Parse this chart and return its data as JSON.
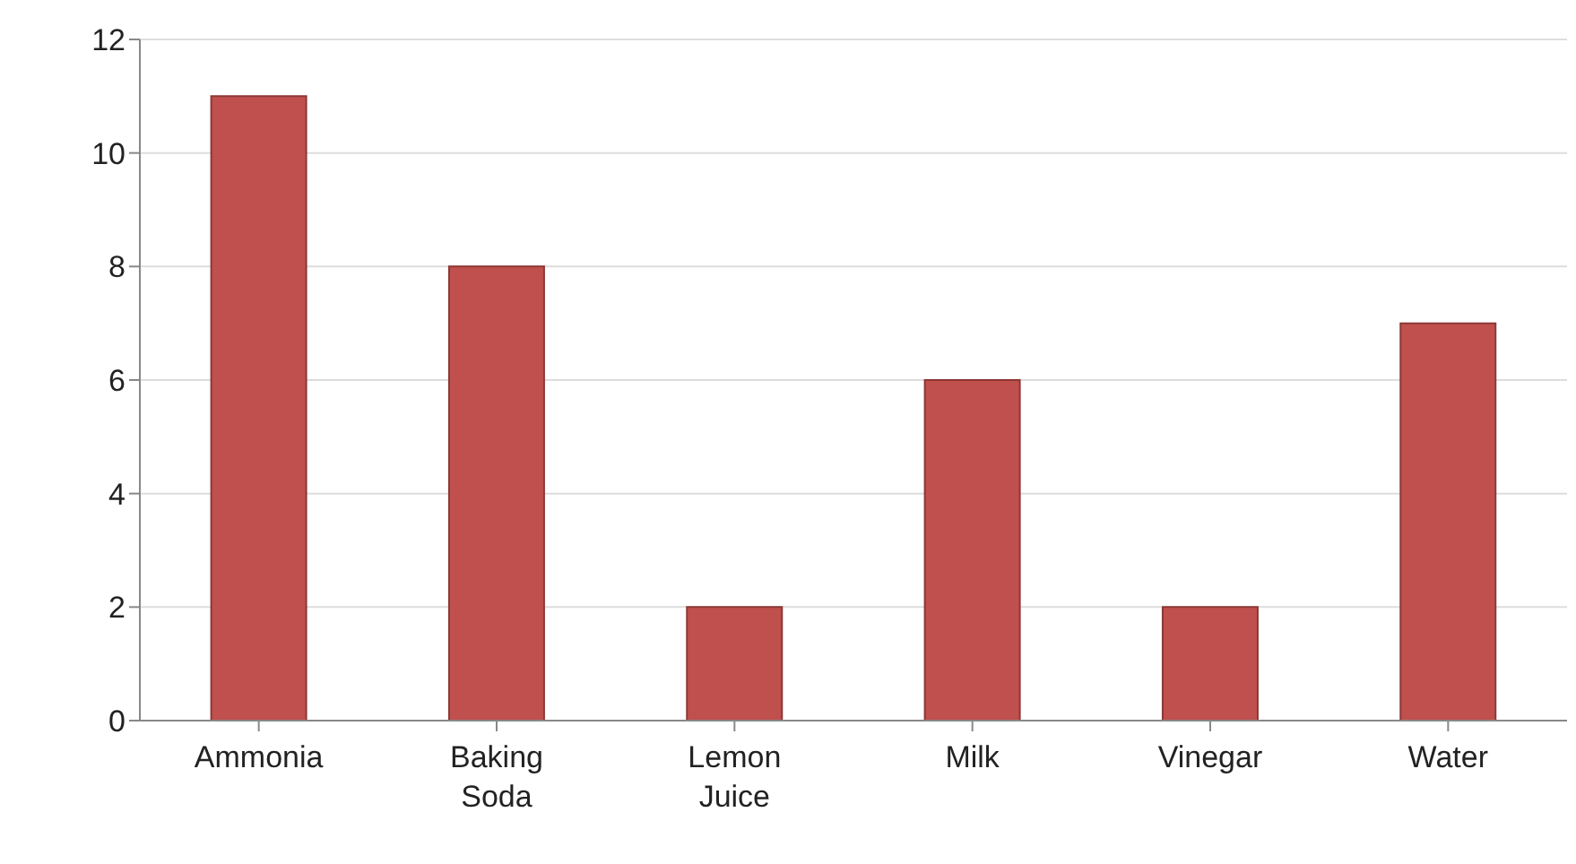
{
  "chart_data": {
    "type": "bar",
    "categories": [
      "Ammonia",
      "Baking Soda",
      "Lemon Juice",
      "Milk",
      "Vinegar",
      "Water"
    ],
    "values": [
      11,
      8,
      2,
      6,
      2,
      7
    ],
    "color": "#c0504d",
    "ylim": [
      0,
      12
    ],
    "yticks": [
      0,
      2,
      4,
      6,
      8,
      10,
      12
    ],
    "grid": "y"
  }
}
